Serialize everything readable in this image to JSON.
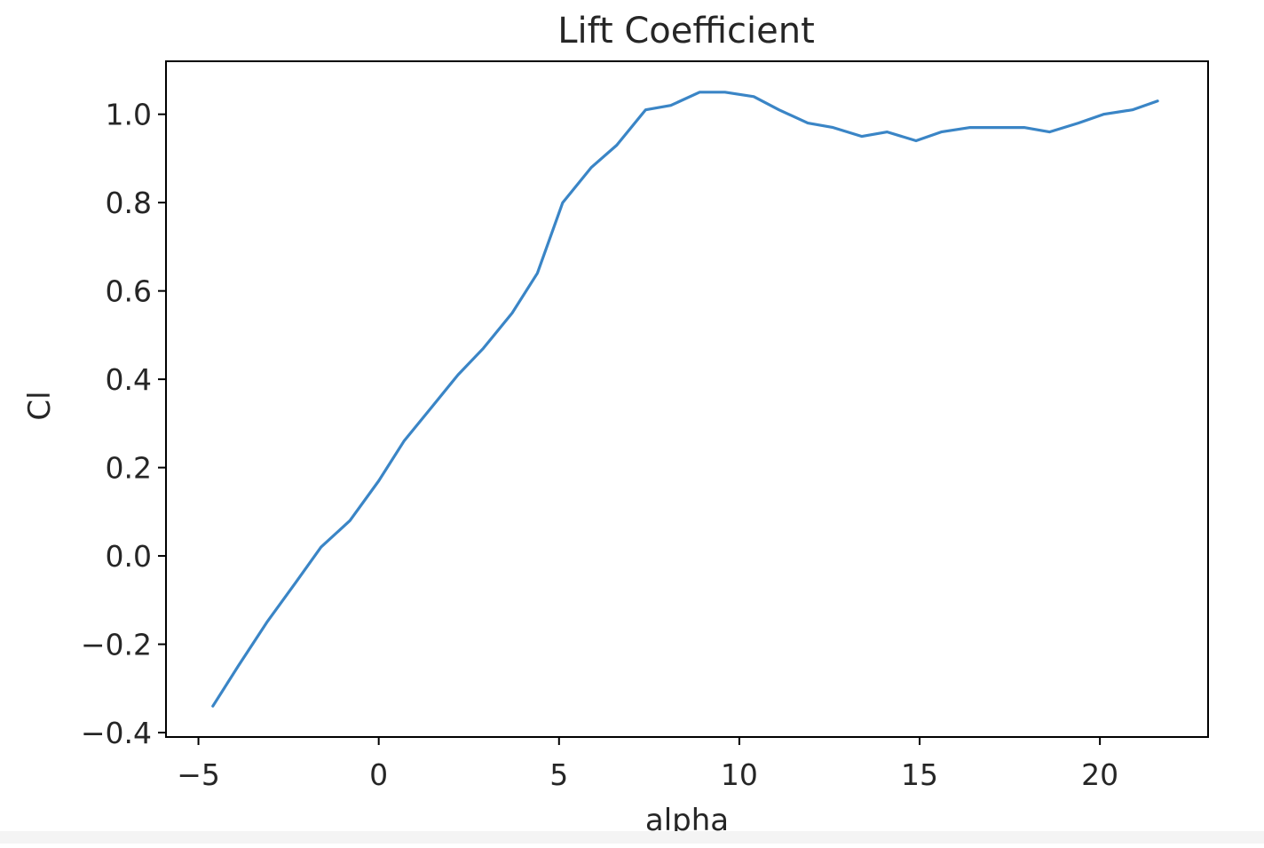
{
  "chart_data": {
    "type": "line",
    "title": "Lift Coefficient",
    "xlabel": "alpha",
    "ylabel": "Cl",
    "xlim": [
      -5.9,
      23.0
    ],
    "ylim": [
      -0.41,
      1.12
    ],
    "xticks": [
      -5,
      0,
      5,
      10,
      15,
      20
    ],
    "xtick_labels": [
      "−5",
      "0",
      "5",
      "10",
      "15",
      "20"
    ],
    "yticks": [
      -0.4,
      -0.2,
      0.0,
      0.2,
      0.4,
      0.6,
      0.8,
      1.0
    ],
    "ytick_labels": [
      "−0.4",
      "−0.2",
      "0.0",
      "0.2",
      "0.4",
      "0.6",
      "0.8",
      "1.0"
    ],
    "grid": false,
    "line_color": "#3a85c6",
    "series": [
      {
        "x": [
          -4.6,
          -3.9,
          -3.1,
          -2.3,
          -1.6,
          -0.8,
          0.0,
          0.7,
          1.5,
          2.2,
          2.9,
          3.7,
          4.4,
          5.1,
          5.9,
          6.6,
          7.4,
          8.1,
          8.9,
          9.6,
          10.4,
          11.1,
          11.9,
          12.6,
          13.4,
          14.1,
          14.9,
          15.6,
          16.4,
          17.1,
          17.9,
          18.6,
          19.4,
          20.1,
          20.9,
          21.6
        ],
        "y": [
          -0.34,
          -0.25,
          -0.15,
          -0.06,
          0.02,
          0.08,
          0.17,
          0.26,
          0.34,
          0.41,
          0.47,
          0.55,
          0.64,
          0.8,
          0.88,
          0.93,
          1.01,
          1.02,
          1.05,
          1.05,
          1.04,
          1.01,
          0.98,
          0.97,
          0.95,
          0.96,
          0.94,
          0.96,
          0.97,
          0.97,
          0.97,
          0.96,
          0.98,
          1.0,
          1.01,
          1.03
        ]
      }
    ]
  }
}
